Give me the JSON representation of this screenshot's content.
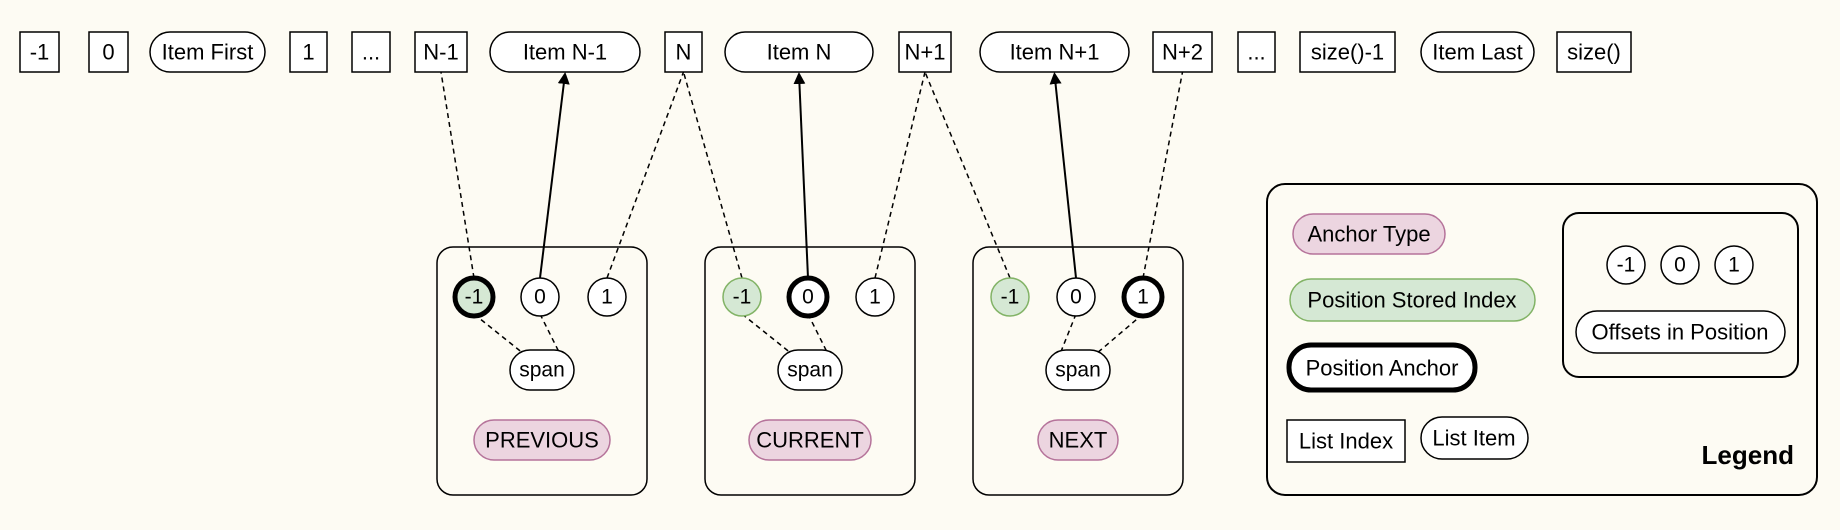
{
  "list_row": [
    {
      "kind": "index",
      "text": "-1"
    },
    {
      "kind": "index",
      "text": "0"
    },
    {
      "kind": "item",
      "text": "Item First"
    },
    {
      "kind": "index",
      "text": "1"
    },
    {
      "kind": "index",
      "text": "..."
    },
    {
      "kind": "index",
      "text": "N-1"
    },
    {
      "kind": "item",
      "text": "Item N-1"
    },
    {
      "kind": "index",
      "text": "N"
    },
    {
      "kind": "item",
      "text": "Item N"
    },
    {
      "kind": "index",
      "text": "N+1"
    },
    {
      "kind": "item",
      "text": "Item N+1"
    },
    {
      "kind": "index",
      "text": "N+2"
    },
    {
      "kind": "index",
      "text": "..."
    },
    {
      "kind": "index",
      "text": "size()-1"
    },
    {
      "kind": "item",
      "text": "Item Last"
    },
    {
      "kind": "index",
      "text": "size()"
    }
  ],
  "positions": [
    {
      "label": "PREVIOUS",
      "offsets": [
        "-1",
        "0",
        "1"
      ],
      "stored": "-1",
      "anchor": "-1",
      "span_label": "span"
    },
    {
      "label": "CURRENT",
      "offsets": [
        "-1",
        "0",
        "1"
      ],
      "stored": "-1",
      "anchor": "0",
      "span_label": "span"
    },
    {
      "label": "NEXT",
      "offsets": [
        "-1",
        "0",
        "1"
      ],
      "stored": "-1",
      "anchor": "1",
      "span_label": "span"
    }
  ],
  "legend": {
    "title": "Legend",
    "anchor_type": "Anchor Type",
    "stored_index": "Position Stored Index",
    "position_anchor": "Position Anchor",
    "list_index": "List Index",
    "list_item": "List Item",
    "offsets": [
      "-1",
      "0",
      "1"
    ],
    "offsets_label": "Offsets in Position"
  },
  "colors": {
    "background": "#fdfbf3",
    "anchor_type_fill": "#ecd5e0",
    "anchor_type_stroke": "#b5739a",
    "stored_fill": "#d5e8d4",
    "stored_stroke": "#82b366"
  }
}
